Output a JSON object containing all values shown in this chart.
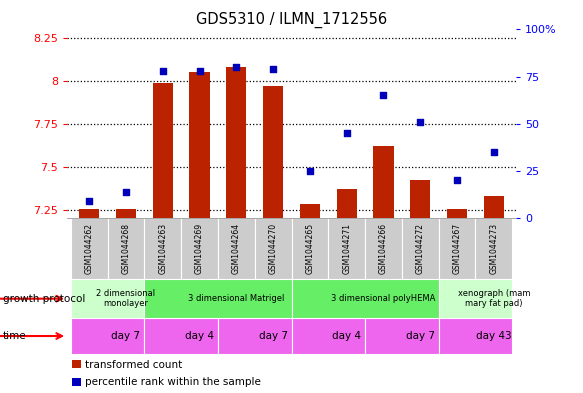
{
  "title": "GDS5310 / ILMN_1712556",
  "samples": [
    "GSM1044262",
    "GSM1044268",
    "GSM1044263",
    "GSM1044269",
    "GSM1044264",
    "GSM1044270",
    "GSM1044265",
    "GSM1044271",
    "GSM1044266",
    "GSM1044272",
    "GSM1044267",
    "GSM1044273"
  ],
  "transformed_counts": [
    7.255,
    7.255,
    7.99,
    8.05,
    8.08,
    7.97,
    7.285,
    7.37,
    7.62,
    7.42,
    7.255,
    7.33
  ],
  "percentile_ranks": [
    9,
    14,
    78,
    78,
    80,
    79,
    25,
    45,
    65,
    51,
    20,
    35
  ],
  "ylim_left": [
    7.2,
    8.3
  ],
  "ylim_right": [
    0,
    100
  ],
  "yticks_left": [
    7.25,
    7.5,
    7.75,
    8.0,
    8.25
  ],
  "ytick_labels_left": [
    "7.25",
    "7.5",
    "7.75",
    "8",
    "8.25"
  ],
  "yticks_right": [
    0,
    25,
    50,
    75,
    100
  ],
  "ytick_labels_right": [
    "0",
    "25",
    "50",
    "75",
    "100%"
  ],
  "bar_color": "#BB2200",
  "scatter_color": "#0000BB",
  "bar_width": 0.55,
  "growth_protocol_groups": [
    {
      "label": "2 dimensional\nmonolayer",
      "start": 0,
      "end": 2,
      "color": "#ccffcc"
    },
    {
      "label": "3 dimensional Matrigel",
      "start": 2,
      "end": 6,
      "color": "#66ee66"
    },
    {
      "label": "3 dimensional polyHEMA",
      "start": 6,
      "end": 10,
      "color": "#66ee66"
    },
    {
      "label": "xenograph (mam\nmary fat pad)",
      "start": 10,
      "end": 12,
      "color": "#ccffcc"
    }
  ],
  "time_groups": [
    {
      "label": "day 7",
      "start": 0,
      "end": 2,
      "color": "#ee66ee"
    },
    {
      "label": "day 4",
      "start": 2,
      "end": 4,
      "color": "#ee66ee"
    },
    {
      "label": "day 7",
      "start": 4,
      "end": 6,
      "color": "#ee66ee"
    },
    {
      "label": "day 4",
      "start": 6,
      "end": 8,
      "color": "#ee66ee"
    },
    {
      "label": "day 7",
      "start": 8,
      "end": 10,
      "color": "#ee66ee"
    },
    {
      "label": "day 43",
      "start": 10,
      "end": 12,
      "color": "#ee66ee"
    }
  ],
  "legend_items": [
    {
      "color": "#BB2200",
      "label": "transformed count"
    },
    {
      "color": "#0000BB",
      "label": "percentile rank within the sample"
    }
  ],
  "bg_color": "#ffffff",
  "sample_bg_color": "#cccccc"
}
